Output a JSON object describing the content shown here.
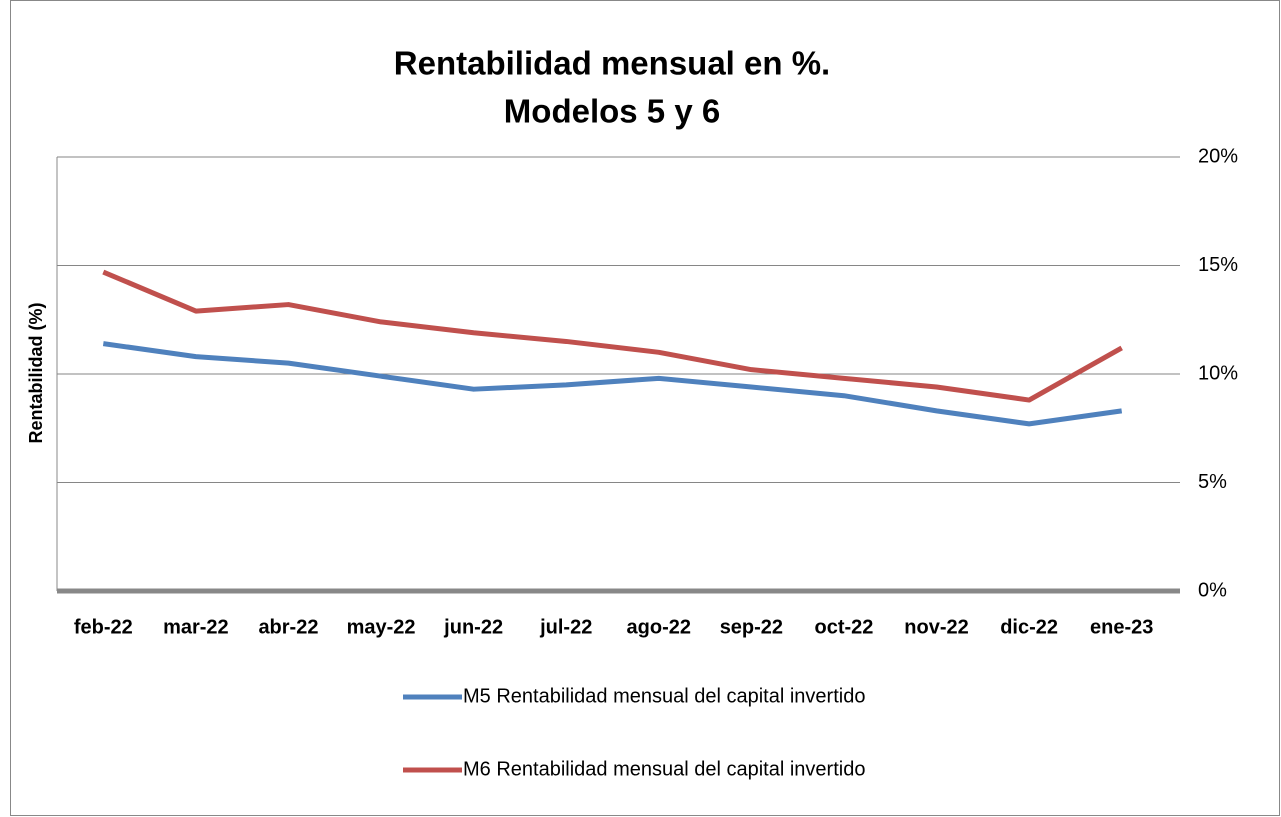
{
  "chart_data": {
    "type": "line",
    "title": [
      "Rentabilidad mensual en %.",
      "Modelos 5 y 6"
    ],
    "y_label": "Rentabilidad (%)",
    "categories": [
      "feb-22",
      "mar-22",
      "abr-22",
      "may-22",
      "jun-22",
      "jul-22",
      "ago-22",
      "sep-22",
      "oct-22",
      "nov-22",
      "dic-22",
      "ene-23"
    ],
    "series": [
      {
        "name": "M5 Rentabilidad mensual del capital invertido",
        "color": "#4f81bd",
        "values": [
          11.4,
          10.8,
          10.5,
          9.9,
          9.3,
          9.5,
          9.8,
          9.4,
          9.0,
          8.3,
          7.7,
          8.3
        ]
      },
      {
        "name": "M6 Rentabilidad mensual del capital invertido",
        "color": "#c0504d",
        "values": [
          14.7,
          12.9,
          13.2,
          12.4,
          11.9,
          11.5,
          11.0,
          10.2,
          9.8,
          9.4,
          8.8,
          11.2
        ]
      }
    ],
    "ylim": [
      0,
      20
    ],
    "yticks": [
      {
        "value": 0,
        "label": "0%"
      },
      {
        "value": 5,
        "label": "5%"
      },
      {
        "value": 10,
        "label": "10%"
      },
      {
        "value": 15,
        "label": "15%"
      },
      {
        "value": 20,
        "label": "20%"
      }
    ],
    "y_axis_side": "right",
    "grid": true,
    "legend": "bottom"
  }
}
